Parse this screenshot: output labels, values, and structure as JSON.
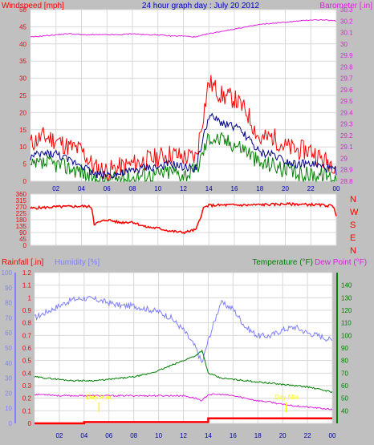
{
  "header": {
    "title": "24 hour graph day : July 20 2012",
    "windspeed_label": "Windspeed [mph]",
    "barometer_label": "Barometer [.in]",
    "rainfall_label": "Rainfall [.in]",
    "humidity_label": "Humidity [%]",
    "temperature_label": "Temperature (°F)",
    "dewpoint_label": "Dew Point (°F)"
  },
  "colors": {
    "wind_gust": "#ff0000",
    "wind_avg": "#00008b",
    "wind_low": "#008000",
    "barometer": "#e020e0",
    "direction": "#ff0000",
    "humidity": "#8080ff",
    "temperature": "#008000",
    "dewpoint": "#e020e0",
    "rain": "#ff0000",
    "marker": "#ffff00"
  },
  "chart_data": [
    {
      "type": "line",
      "title": "24 hour graph day : July 20 2012",
      "x_ticks": [
        "02",
        "04",
        "06",
        "08",
        "10",
        "12",
        "14",
        "16",
        "18",
        "20",
        "22",
        "00"
      ],
      "left_axis": {
        "label": "Windspeed [mph]",
        "range": [
          0,
          50
        ],
        "ticks": [
          "0",
          "5",
          "10",
          "15",
          "20",
          "25",
          "30",
          "35",
          "40",
          "45",
          "50"
        ]
      },
      "right_axis": {
        "label": "Barometer [.in]",
        "range": [
          28.8,
          30.3
        ],
        "ticks": [
          "28.8",
          "28.9",
          "29",
          "29.1",
          "29.2",
          "29.3",
          "29.4",
          "29.5",
          "29.6",
          "29.7",
          "29.8",
          "29.9",
          "30",
          "30.1",
          "30.2",
          "30.3"
        ]
      },
      "hours": [
        0,
        1,
        2,
        3,
        4,
        5,
        6,
        7,
        8,
        9,
        10,
        11,
        12,
        13,
        14,
        15,
        16,
        17,
        18,
        19,
        20,
        21,
        22,
        23,
        24
      ],
      "series": [
        {
          "name": "gust",
          "values": [
            11,
            13,
            12,
            10,
            9,
            4,
            3,
            4,
            5,
            6,
            7,
            8,
            7,
            7,
            29,
            25,
            24,
            20,
            12,
            13,
            10,
            9,
            9,
            6,
            5
          ]
        },
        {
          "name": "average",
          "values": [
            7,
            8,
            8,
            6,
            5,
            2,
            2,
            2,
            3,
            4,
            4,
            5,
            4,
            4,
            19,
            17,
            16,
            13,
            8,
            8,
            6,
            5,
            5,
            4,
            3
          ]
        },
        {
          "name": "low",
          "values": [
            4,
            5,
            5,
            4,
            3,
            0,
            0,
            1,
            1,
            2,
            2,
            3,
            2,
            3,
            13,
            12,
            11,
            9,
            5,
            5,
            3,
            2,
            2,
            2,
            1
          ]
        },
        {
          "name": "barometer",
          "values": [
            30.06,
            30.07,
            30.08,
            30.09,
            30.08,
            30.08,
            30.08,
            30.08,
            30.09,
            30.08,
            30.08,
            30.07,
            30.07,
            30.06,
            30.09,
            30.11,
            30.13,
            30.15,
            30.17,
            30.18,
            30.19,
            30.2,
            30.21,
            30.21,
            30.2
          ]
        }
      ]
    },
    {
      "type": "line",
      "left_axis": {
        "range": [
          0,
          360
        ],
        "ticks": [
          "0",
          "45",
          "90",
          "135",
          "180",
          "225",
          "270",
          "315",
          "360"
        ]
      },
      "right_axis": {
        "ticks": [
          "N",
          "W",
          "S",
          "E",
          "N"
        ]
      },
      "hours": [
        0,
        1,
        2,
        3,
        4,
        4.8,
        5,
        6,
        7,
        8,
        9,
        10,
        11,
        12,
        13,
        13.6,
        14,
        15,
        16,
        17,
        18,
        19,
        20,
        21,
        22,
        23,
        23.8,
        24
      ],
      "series": [
        {
          "name": "wind direction",
          "values": [
            260,
            265,
            270,
            272,
            275,
            270,
            150,
            180,
            160,
            165,
            130,
            120,
            100,
            90,
            110,
            265,
            280,
            282,
            283,
            282,
            285,
            287,
            290,
            288,
            286,
            282,
            275,
            210
          ]
        }
      ]
    },
    {
      "type": "line",
      "x_ticks": [
        "02",
        "04",
        "06",
        "08",
        "10",
        "12",
        "14",
        "16",
        "18",
        "20",
        "22",
        "00"
      ],
      "rain_axis": {
        "label": "Rainfall [.in]",
        "range": [
          0,
          1.2
        ],
        "ticks": [
          "0",
          "0.1",
          "0.2",
          "0.3",
          "0.4",
          "0.5",
          "0.6",
          "0.7",
          "0.8",
          "0.9",
          "1",
          "1.1",
          "1.2"
        ]
      },
      "humidity_axis": {
        "label": "Humidity [%]",
        "range": [
          0,
          100
        ],
        "ticks": [
          "0",
          "10",
          "20",
          "30",
          "40",
          "50",
          "60",
          "70",
          "80",
          "90",
          "100"
        ]
      },
      "temperature_axis": {
        "label": "Temperature (°F)",
        "range": [
          30,
          150
        ],
        "ticks": [
          "40",
          "50",
          "60",
          "70",
          "80",
          "90",
          "100",
          "110",
          "120",
          "130",
          "140"
        ]
      },
      "annotations": [
        "Day Max",
        "Day Min"
      ],
      "hours": [
        0,
        1,
        2,
        3,
        4,
        5,
        6,
        7,
        8,
        9,
        10,
        11,
        12,
        13,
        13.5,
        14,
        15,
        16,
        17,
        18,
        19,
        20,
        21,
        22,
        23,
        24
      ],
      "series": [
        {
          "name": "Humidity [%]",
          "values": [
            70,
            74,
            78,
            82,
            83,
            82,
            80,
            78,
            78,
            76,
            74,
            70,
            62,
            50,
            40,
            55,
            80,
            76,
            64,
            58,
            58,
            62,
            64,
            60,
            58,
            55
          ]
        },
        {
          "name": "Temperature (°F)",
          "values": [
            67,
            66,
            65,
            64,
            64,
            64,
            65,
            66,
            67,
            69,
            72,
            76,
            80,
            84,
            88,
            70,
            66,
            65,
            64,
            63,
            62,
            61,
            60,
            59,
            57,
            55
          ]
        },
        {
          "name": "Dew Point (°F)",
          "values": [
            53,
            53,
            52,
            52,
            52,
            52,
            52,
            52,
            52,
            52,
            52,
            52,
            52,
            50,
            48,
            53,
            53,
            52,
            50,
            48,
            47,
            45,
            44,
            43,
            42,
            41
          ]
        },
        {
          "name": "Rainfall [.in]",
          "values": [
            0,
            0,
            0,
            0,
            0.01,
            0.01,
            0.01,
            0.01,
            0.01,
            0.01,
            0.01,
            0.01,
            0.01,
            0.01,
            0.01,
            0.04,
            0.04,
            0.04,
            0.04,
            0.04,
            0.04,
            0.04,
            0.04,
            0.04,
            0.04,
            0.04
          ]
        }
      ]
    }
  ]
}
